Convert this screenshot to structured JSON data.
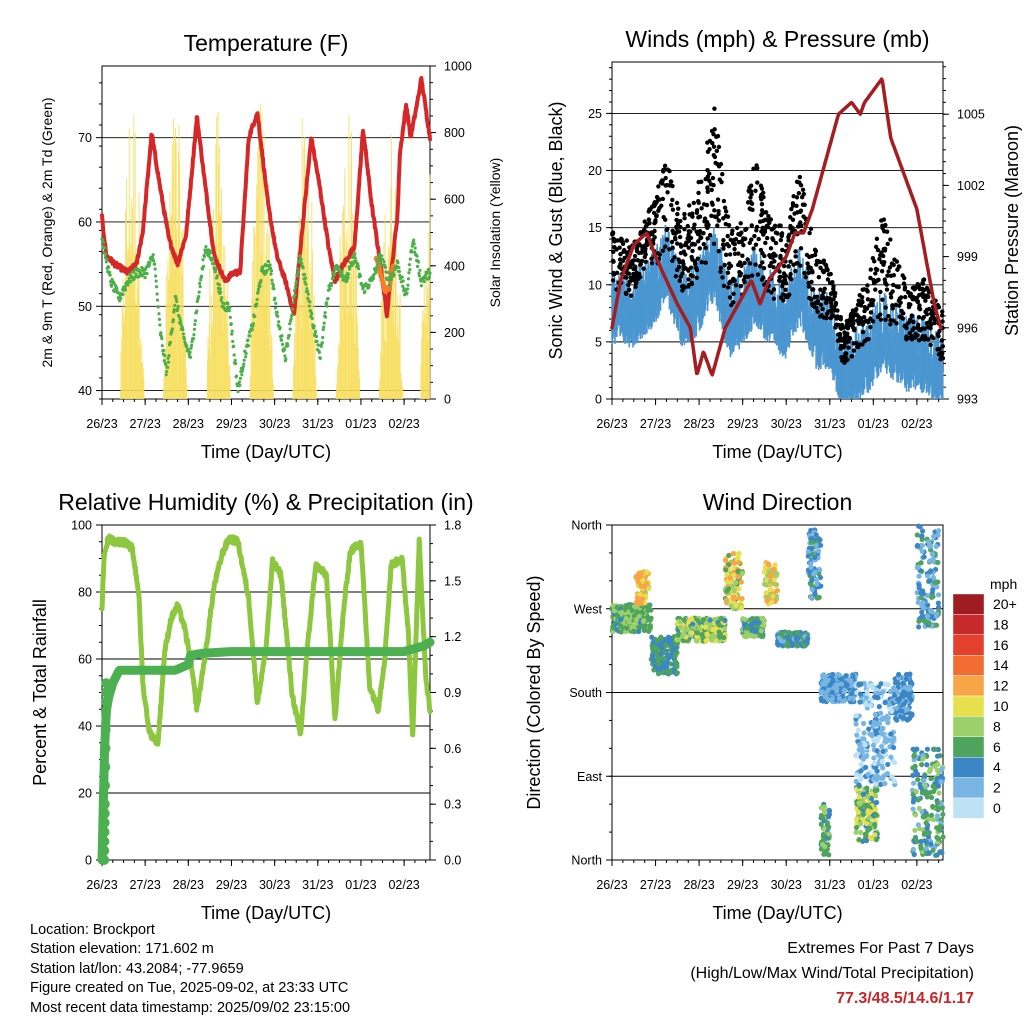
{
  "x_ticks": [
    "26/23",
    "27/23",
    "28/23",
    "29/23",
    "30/23",
    "31/23",
    "01/23",
    "02/23"
  ],
  "chart_data": [
    {
      "type": "line",
      "title": "Temperature (F)",
      "xlabel": "Time (Day/UTC)",
      "ylabel": "2m & 9m T (Red, Orange) & 2m Td (Green)",
      "ylabel_right": "Solar Insolation (Yellow)",
      "x_ticks": [
        "26/23",
        "27/23",
        "28/23",
        "29/23",
        "30/23",
        "31/23",
        "01/23",
        "02/23"
      ],
      "ylim": [
        39,
        78.5
      ],
      "yticks": [
        40,
        50,
        60,
        70
      ],
      "ylim_right": [
        0,
        1000
      ],
      "yticks_right": [
        0,
        200,
        400,
        600,
        800,
        1000
      ],
      "grid": "horizontal at left ticks",
      "series": [
        {
          "color": "#d62728",
          "t": [
            0,
            0.1,
            0.3,
            0.6,
            0.8,
            0.95,
            1.15,
            1.35,
            1.55,
            1.75,
            1.95,
            2.2,
            2.4,
            2.6,
            2.85,
            3.05,
            3.2,
            3.4,
            3.6,
            3.85,
            4.05,
            4.25,
            4.45,
            4.6,
            4.85,
            5.05,
            5.25,
            5.4,
            5.6,
            5.85,
            6.05,
            6.25,
            6.45,
            6.6,
            6.85,
            6.9,
            7.05,
            7.15,
            7.3,
            7.4,
            7.6
          ],
          "y": [
            60.5,
            56,
            55,
            54,
            55,
            59,
            70.5,
            64,
            58,
            55,
            58.5,
            72.5,
            64,
            56,
            53,
            54,
            54,
            70,
            73,
            62,
            56,
            53,
            49,
            57,
            70,
            64,
            57,
            53,
            55,
            57,
            71,
            62,
            55,
            49,
            61,
            68,
            74,
            70,
            74,
            77,
            70
          ]
        },
        {
          "color": "#f57c2a",
          "t": [
            6.35,
            6.45,
            6.55,
            6.65,
            6.75
          ],
          "y": [
            56,
            54,
            52,
            52,
            55
          ]
        },
        {
          "color": "#4daf4a",
          "t": [
            0,
            0.2,
            0.4,
            0.6,
            0.8,
            1.0,
            1.2,
            1.35,
            1.5,
            1.7,
            1.9,
            2.05,
            2.2,
            2.4,
            2.6,
            2.8,
            2.95,
            3.15,
            3.3,
            3.5,
            3.7,
            3.9,
            4.05,
            4.25,
            4.45,
            4.6,
            4.85,
            5.05,
            5.25,
            5.45,
            5.65,
            5.85,
            6.05,
            6.25,
            6.45,
            6.65,
            6.85,
            7.05,
            7.2,
            7.4,
            7.6
          ],
          "y": [
            58,
            53,
            51,
            53,
            54,
            54,
            56,
            47,
            42,
            51,
            46,
            44,
            50,
            57,
            55,
            50,
            50,
            40,
            44,
            48,
            54,
            55,
            49,
            44,
            51,
            56,
            49,
            44,
            52,
            55,
            53,
            56,
            52,
            53,
            56,
            53,
            55,
            51,
            58,
            53,
            54
          ]
        }
      ],
      "insolation_peaks": [
        {
          "day": 0.7,
          "peak": 960
        },
        {
          "day": 1.7,
          "peak": 910
        },
        {
          "day": 2.7,
          "peak": 880
        },
        {
          "day": 3.7,
          "peak": 960
        },
        {
          "day": 4.7,
          "peak": 900
        },
        {
          "day": 5.7,
          "peak": 900
        },
        {
          "day": 6.7,
          "peak": 840
        },
        {
          "day": 7.65,
          "peak": 800
        }
      ]
    },
    {
      "type": "scatter",
      "title": "Winds (mph) & Pressure (mb)",
      "xlabel": "Time (Day/UTC)",
      "ylabel": "Sonic Wind & Gust (Blue, Black)",
      "ylabel_right": "Station Pressure (Maroon)",
      "x_ticks": [
        "26/23",
        "27/23",
        "28/23",
        "29/23",
        "30/23",
        "31/23",
        "01/23",
        "02/23"
      ],
      "ylim": [
        0,
        29.5
      ],
      "yticks": [
        0,
        5,
        10,
        15,
        20,
        25
      ],
      "ylim_right": [
        993,
        1007.2
      ],
      "yticks_right": [
        993,
        996,
        999,
        1002,
        1005
      ],
      "grid": "horizontal at left ticks",
      "wind_profile": {
        "t": [
          0,
          0.5,
          1.0,
          1.25,
          1.6,
          2.0,
          2.35,
          2.7,
          3.0,
          3.3,
          3.6,
          4.0,
          4.3,
          4.7,
          5.0,
          5.3,
          5.6,
          5.9,
          6.2,
          6.5,
          6.8,
          7.2,
          7.6
        ],
        "y": [
          7,
          7,
          9,
          11,
          7,
          8,
          11,
          6,
          7,
          9,
          7,
          6,
          9,
          5,
          5,
          1,
          2,
          3,
          5,
          4,
          3,
          3,
          1
        ]
      },
      "gust_profile": {
        "t": [
          0,
          0.5,
          1.0,
          1.25,
          1.6,
          2.0,
          2.35,
          2.7,
          3.0,
          3.3,
          3.6,
          4.0,
          4.3,
          4.7,
          5.0,
          5.3,
          5.6,
          5.9,
          6.2,
          6.5,
          6.8,
          7.2,
          7.6
        ],
        "y": [
          12,
          11,
          15,
          18,
          13,
          16,
          22,
          12,
          13,
          18,
          13,
          12,
          17,
          10,
          9,
          4,
          6,
          8,
          13,
          10,
          7,
          8,
          5
        ]
      },
      "pressure": {
        "color": "#a31d21",
        "t": [
          0,
          0.2,
          0.5,
          0.8,
          1.0,
          1.25,
          1.5,
          1.8,
          1.95,
          2.1,
          2.3,
          2.6,
          2.9,
          3.2,
          3.4,
          3.6,
          4.0,
          4.2,
          4.4,
          4.6,
          4.9,
          5.2,
          5.5,
          5.7,
          5.8,
          6.0,
          6.2,
          6.4,
          6.6,
          6.8,
          7.0,
          7.2,
          7.4,
          7.55
        ],
        "y": [
          996,
          998,
          999.5,
          1000,
          999,
          998,
          997,
          996,
          994,
          995,
          994,
          996,
          997,
          998,
          997,
          998,
          999,
          1000,
          1000,
          1001,
          1003,
          1005,
          1005.5,
          1005,
          1005.5,
          1006,
          1006.5,
          1004,
          1003,
          1002,
          1001,
          999,
          997,
          996
        ]
      }
    },
    {
      "type": "line",
      "title": "Relative Humidity (%) & Precipitation (in)",
      "xlabel": "Time (Day/UTC)",
      "ylabel": "Percent & Total Rainfall",
      "x_ticks": [
        "26/23",
        "27/23",
        "28/23",
        "29/23",
        "30/23",
        "31/23",
        "01/23",
        "02/23"
      ],
      "ylim": [
        0,
        100
      ],
      "yticks": [
        0,
        20,
        40,
        60,
        80,
        100
      ],
      "ylim_right": [
        0,
        1.8
      ],
      "yticks_right": [
        0,
        0.3,
        0.6,
        0.9,
        1.2,
        1.5,
        1.8
      ],
      "grid": "horizontal at left ticks",
      "humidity": {
        "color": "#8dc63f",
        "t": [
          0,
          0.05,
          0.15,
          0.3,
          0.5,
          0.7,
          0.85,
          0.95,
          1.1,
          1.3,
          1.45,
          1.6,
          1.75,
          1.9,
          2.05,
          2.2,
          2.4,
          2.6,
          2.8,
          2.95,
          3.15,
          3.4,
          3.6,
          3.8,
          3.95,
          4.15,
          4.4,
          4.6,
          4.75,
          4.95,
          5.2,
          5.4,
          5.6,
          5.75,
          6.0,
          6.2,
          6.4,
          6.55,
          6.7,
          6.95,
          7.1,
          7.2,
          7.35,
          7.5,
          7.6
        ],
        "y": [
          74,
          92,
          96,
          95,
          95,
          93,
          80,
          52,
          38,
          35,
          62,
          72,
          76,
          70,
          60,
          45,
          62,
          82,
          92,
          96,
          95,
          78,
          47,
          63,
          89,
          85,
          50,
          37,
          62,
          88,
          85,
          42,
          75,
          92,
          95,
          52,
          45,
          60,
          88,
          90,
          68,
          37,
          95,
          55,
          45
        ]
      },
      "rainfall": {
        "color": "#4caf50",
        "t": [
          0,
          0.03,
          0.06,
          0.1,
          0.15,
          0.25,
          0.4,
          1.0,
          1.3,
          1.5,
          1.7,
          2.0,
          2.05,
          2.3,
          3.0,
          4.0,
          5.0,
          6.0,
          7.0,
          7.45,
          7.6
        ],
        "y": [
          0,
          0.3,
          0.6,
          0.8,
          0.87,
          0.95,
          1.02,
          1.02,
          1.02,
          1.02,
          1.02,
          1.05,
          1.1,
          1.11,
          1.12,
          1.12,
          1.12,
          1.12,
          1.12,
          1.15,
          1.17
        ]
      }
    },
    {
      "type": "scatter",
      "title": "Wind Direction",
      "xlabel": "Time (Day/UTC)",
      "ylabel": "Direction (Colored By Speed)",
      "x_ticks": [
        "26/23",
        "27/23",
        "28/23",
        "29/23",
        "30/23",
        "31/23",
        "01/23",
        "02/23"
      ],
      "y_ticks": [
        "North",
        "East",
        "South",
        "West",
        "North"
      ],
      "ylim_deg": [
        0,
        360
      ],
      "grid": "horizontal at cardinal directions",
      "legend": {
        "title": "mph",
        "position": "right",
        "labels": [
          "20+",
          "18",
          "16",
          "14",
          "12",
          "10",
          "8",
          "6",
          "4",
          "2",
          "0"
        ],
        "colors": [
          "#9e1c22",
          "#c62a2a",
          "#e3412d",
          "#f06c30",
          "#f8a548",
          "#e8df4f",
          "#9bd06b",
          "#4ea45c",
          "#3b86c5",
          "#78b5e3",
          "#bde2f6"
        ]
      },
      "clusters": [
        {
          "t": [
            0,
            0.9
          ],
          "dir": [
            245,
            275
          ],
          "speed": [
            4,
            9
          ]
        },
        {
          "t": [
            0.55,
            0.85
          ],
          "dir": [
            275,
            310
          ],
          "speed": [
            8,
            13
          ]
        },
        {
          "t": [
            0.9,
            1.5
          ],
          "dir": [
            200,
            240
          ],
          "speed": [
            3,
            7
          ]
        },
        {
          "t": [
            1.5,
            2.6
          ],
          "dir": [
            235,
            260
          ],
          "speed": [
            4,
            11
          ]
        },
        {
          "t": [
            2.6,
            3.0
          ],
          "dir": [
            270,
            330
          ],
          "speed": [
            6,
            13
          ]
        },
        {
          "t": [
            3.0,
            3.5
          ],
          "dir": [
            240,
            260
          ],
          "speed": [
            4,
            8
          ]
        },
        {
          "t": [
            3.5,
            3.8
          ],
          "dir": [
            275,
            320
          ],
          "speed": [
            7,
            13
          ]
        },
        {
          "t": [
            3.8,
            4.5
          ],
          "dir": [
            230,
            245
          ],
          "speed": [
            2,
            6
          ]
        },
        {
          "t": [
            4.5,
            4.8
          ],
          "dir": [
            280,
            355
          ],
          "speed": [
            2,
            6
          ]
        },
        {
          "t": [
            4.8,
            5.6
          ],
          "dir": [
            170,
            200
          ],
          "speed": [
            1,
            5
          ]
        },
        {
          "t": [
            4.8,
            5.0
          ],
          "dir": [
            5,
            60
          ],
          "speed": [
            4,
            8
          ]
        },
        {
          "t": [
            5.6,
            6.1
          ],
          "dir": [
            20,
            80
          ],
          "speed": [
            4,
            11
          ]
        },
        {
          "t": [
            5.6,
            6.5
          ],
          "dir": [
            80,
            190
          ],
          "speed": [
            0,
            4
          ]
        },
        {
          "t": [
            6.5,
            6.9
          ],
          "dir": [
            150,
            200
          ],
          "speed": [
            2,
            5
          ]
        },
        {
          "t": [
            6.9,
            7.6
          ],
          "dir": [
            5,
            120
          ],
          "speed": [
            2,
            8
          ]
        },
        {
          "t": [
            7.0,
            7.5
          ],
          "dir": [
            250,
            360
          ],
          "speed": [
            1,
            6
          ]
        }
      ]
    }
  ],
  "info": {
    "location": "Location: Brockport",
    "elevation": "Station elevation: 171.602 m",
    "latlon": "Station lat/lon: 43.2084; -77.9659",
    "created": "Figure created on Tue, 2025-09-02, at 23:33 UTC",
    "recent": "Most recent data timestamp: 2025/09/02 23:15:00"
  },
  "extremes": {
    "heading": "Extremes For Past 7 Days",
    "subheading": "(High/Low/Max Wind/Total Precipitation)",
    "values": "77.3/48.5/14.6/1.17",
    "value_color": "#c8262a"
  }
}
